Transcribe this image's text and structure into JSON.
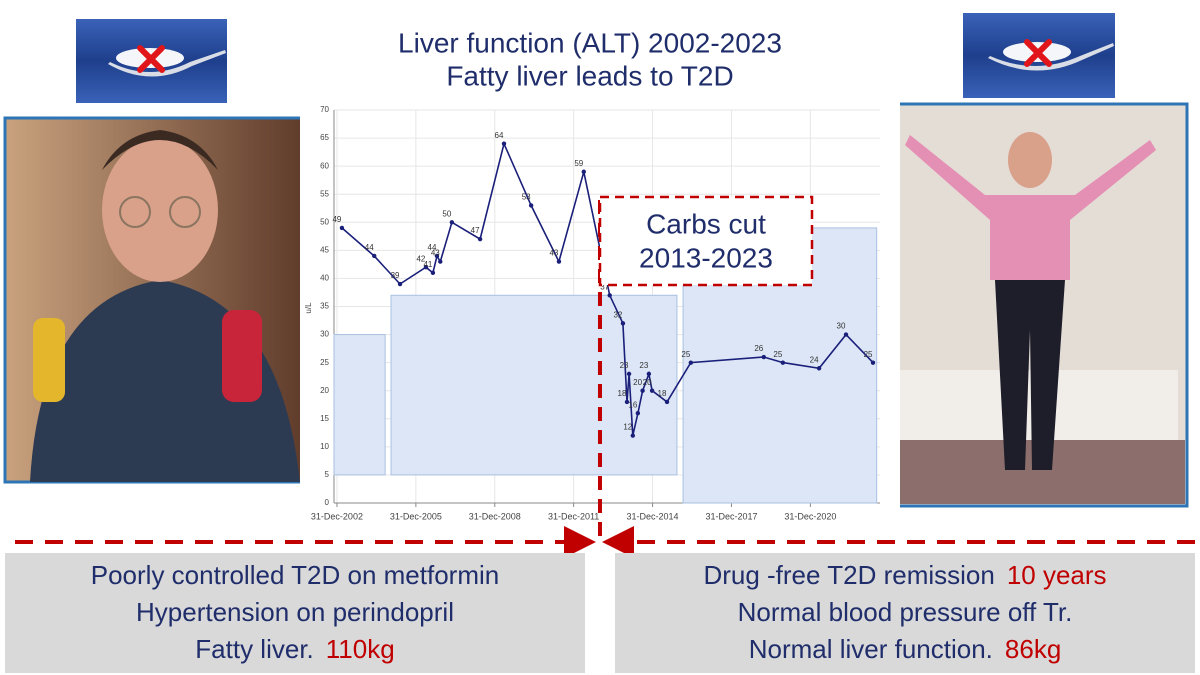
{
  "chart_data": {
    "type": "line",
    "title": [
      "Liver function (ALT) 2002-2023",
      "Fatty liver leads to T2D"
    ],
    "y_label": "u/L",
    "x": [
      "2003-03-10",
      "2004-06-01",
      "2005-05-25",
      "2006-05-20",
      "2006-08-25",
      "2006-10-20",
      "2006-12-05",
      "2007-05-15",
      "2008-06-10",
      "2009-05-08",
      "2010-05-20",
      "2011-06-10",
      "2012-05-20",
      "2013-05-15",
      "2013-11-15",
      "2014-01-10",
      "2014-02-08",
      "2014-04-01",
      "2014-06-10",
      "2014-08-15",
      "2014-11-10",
      "2014-12-25",
      "2015-07-20",
      "2016-06-15",
      "2019-03-25",
      "2019-12-15",
      "2021-05-01",
      "2022-05-10",
      "2023-05-20"
    ],
    "values": [
      49,
      44,
      39,
      42,
      41,
      44,
      43,
      50,
      47,
      64,
      53,
      43,
      59,
      37,
      32,
      18,
      23,
      12,
      16,
      20,
      23,
      20,
      18,
      25,
      26,
      25,
      24,
      30,
      25
    ],
    "color": "#1a1f7a",
    "xlim": [
      "2002-11-20",
      "2023-08-25"
    ],
    "xticks": [
      {
        "value": "2002-12-31",
        "label": "31-Dec-2002"
      },
      {
        "value": "2005-12-31",
        "label": "31-Dec-2005"
      },
      {
        "value": "2008-12-31",
        "label": "31-Dec-2008"
      },
      {
        "value": "2011-12-31",
        "label": "31-Dec-2011"
      },
      {
        "value": "2014-12-31",
        "label": "31-Dec-2014"
      },
      {
        "value": "2017-12-31",
        "label": "31-Dec-2017"
      },
      {
        "value": "2020-12-31",
        "label": "31-Dec-2020"
      }
    ],
    "ylim": [
      0,
      70
    ],
    "yticks": [
      0,
      5,
      10,
      15,
      20,
      25,
      30,
      35,
      40,
      45,
      50,
      55,
      60,
      65,
      70
    ],
    "grid": true,
    "shaded_regions": [
      {
        "x": [
          "2002-11-20",
          "2004-10-30"
        ],
        "y": [
          5,
          30
        ]
      },
      {
        "x": [
          "2005-01-20",
          "2015-12-05"
        ],
        "y": [
          5,
          37
        ]
      },
      {
        "x": [
          "2016-02-28",
          "2023-07-10"
        ],
        "y": [
          0,
          49
        ]
      }
    ],
    "annotation": {
      "lines": [
        "Carbs cut",
        "2013-2023"
      ],
      "x": "2012-12-31"
    }
  },
  "left_box": {
    "lines": [
      {
        "text": "Poorly controlled T2D on metformin"
      },
      {
        "text": "Hypertension on perindopril"
      },
      {
        "text": "Fatty liver.",
        "highlight": "110kg"
      }
    ]
  },
  "right_box": {
    "lines": [
      {
        "text": "Drug -free T2D remission",
        "highlight": "10 years"
      },
      {
        "text": "Normal blood pressure off Tr."
      },
      {
        "text": "Normal liver function.",
        "highlight": "86kg"
      }
    ]
  }
}
